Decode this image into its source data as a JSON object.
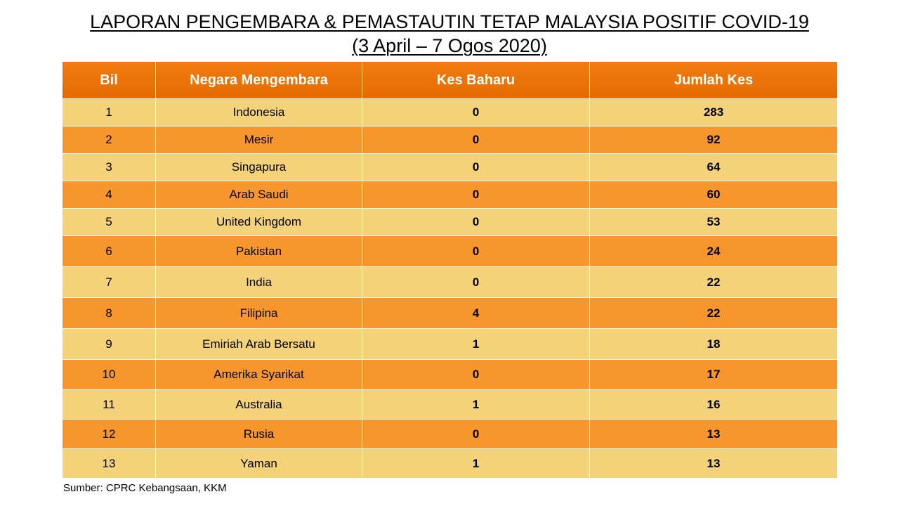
{
  "title": {
    "line1": "LAPORAN PENGEMBARA & PEMASTAUTIN TETAP MALAYSIA POSITIF COVID-19",
    "line2": "(3 April – 7 Ogos 2020)"
  },
  "table": {
    "headers": [
      "Bil",
      "Negara Mengembara",
      "Kes Baharu",
      "Jumlah Kes"
    ],
    "rows": [
      [
        "1",
        "Indonesia",
        "0",
        "283"
      ],
      [
        "2",
        "Mesir",
        "0",
        "92"
      ],
      [
        "3",
        "Singapura",
        "0",
        "64"
      ],
      [
        "4",
        "Arab Saudi",
        "0",
        "60"
      ],
      [
        "5",
        "United Kingdom",
        "0",
        "53"
      ],
      [
        "6",
        "Pakistan",
        "0",
        "24"
      ],
      [
        "7",
        "India",
        "0",
        "22"
      ],
      [
        "8",
        "Filipina",
        "4",
        "22"
      ],
      [
        "9",
        "Emiriah Arab Bersatu",
        "1",
        "18"
      ],
      [
        "10",
        "Amerika Syarikat",
        "0",
        "17"
      ],
      [
        "11",
        "Australia",
        "1",
        "16"
      ],
      [
        "12",
        "Rusia",
        "0",
        "13"
      ],
      [
        "13",
        "Yaman",
        "1",
        "13"
      ]
    ]
  },
  "source": "Sumber: CPRC Kebangsaan, KKM",
  "colors": {
    "header": "#ea7305",
    "row_light": "#f4d27a",
    "row_dark": "#f7962c"
  }
}
